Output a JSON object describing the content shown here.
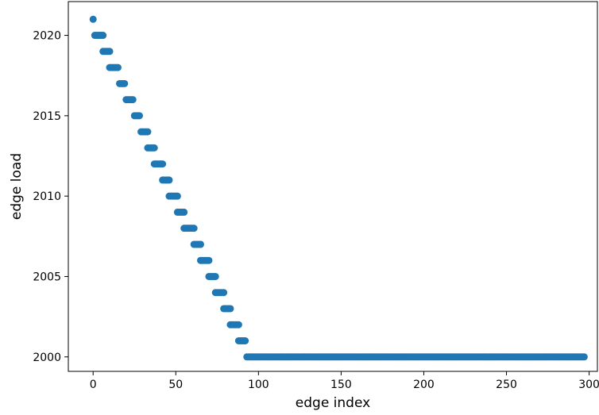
{
  "chart_data": {
    "type": "scatter",
    "title": "",
    "xlabel": "edge index",
    "ylabel": "edge load",
    "xlim": [
      -15,
      305
    ],
    "ylim": [
      1999.1,
      2022.1
    ],
    "xticks": [
      0,
      50,
      100,
      150,
      200,
      250,
      300
    ],
    "yticks": [
      2000,
      2005,
      2010,
      2015,
      2020
    ],
    "grid": false,
    "legend": "none",
    "marker_color": "#1f77b4",
    "series": [
      {
        "points": [
          [
            0,
            2021
          ],
          [
            1,
            2020
          ],
          [
            2,
            2020
          ],
          [
            3,
            2020
          ],
          [
            4,
            2020
          ],
          [
            5,
            2020
          ],
          [
            6,
            2020
          ],
          [
            6,
            2019
          ],
          [
            7,
            2019
          ],
          [
            8,
            2019
          ],
          [
            9,
            2019
          ],
          [
            10,
            2019
          ],
          [
            10,
            2018
          ],
          [
            11,
            2018
          ],
          [
            12,
            2018
          ],
          [
            13,
            2018
          ],
          [
            14,
            2018
          ],
          [
            15,
            2018
          ],
          [
            16,
            2017
          ],
          [
            17,
            2017
          ],
          [
            18,
            2017
          ],
          [
            19,
            2017
          ],
          [
            20,
            2016
          ],
          [
            21,
            2016
          ],
          [
            22,
            2016
          ],
          [
            23,
            2016
          ],
          [
            24,
            2016
          ],
          [
            25,
            2015
          ],
          [
            26,
            2015
          ],
          [
            27,
            2015
          ],
          [
            28,
            2015
          ],
          [
            29,
            2014
          ],
          [
            30,
            2014
          ],
          [
            31,
            2014
          ],
          [
            32,
            2014
          ],
          [
            33,
            2014
          ],
          [
            33,
            2013
          ],
          [
            34,
            2013
          ],
          [
            35,
            2013
          ],
          [
            36,
            2013
          ],
          [
            37,
            2013
          ],
          [
            37,
            2012
          ],
          [
            38,
            2012
          ],
          [
            39,
            2012
          ],
          [
            40,
            2012
          ],
          [
            41,
            2012
          ],
          [
            42,
            2012
          ],
          [
            42,
            2011
          ],
          [
            43,
            2011
          ],
          [
            44,
            2011
          ],
          [
            45,
            2011
          ],
          [
            46,
            2011
          ],
          [
            46,
            2010
          ],
          [
            47,
            2010
          ],
          [
            48,
            2010
          ],
          [
            49,
            2010
          ],
          [
            50,
            2010
          ],
          [
            51,
            2010
          ],
          [
            51,
            2009
          ],
          [
            52,
            2009
          ],
          [
            53,
            2009
          ],
          [
            54,
            2009
          ],
          [
            55,
            2009
          ],
          [
            55,
            2008
          ],
          [
            56,
            2008
          ],
          [
            57,
            2008
          ],
          [
            58,
            2008
          ],
          [
            59,
            2008
          ],
          [
            60,
            2008
          ],
          [
            61,
            2008
          ],
          [
            61,
            2007
          ],
          [
            62,
            2007
          ],
          [
            63,
            2007
          ],
          [
            64,
            2007
          ],
          [
            65,
            2007
          ],
          [
            65,
            2006
          ],
          [
            66,
            2006
          ],
          [
            67,
            2006
          ],
          [
            68,
            2006
          ],
          [
            69,
            2006
          ],
          [
            70,
            2006
          ],
          [
            70,
            2005
          ],
          [
            71,
            2005
          ],
          [
            72,
            2005
          ],
          [
            73,
            2005
          ],
          [
            74,
            2005
          ],
          [
            74,
            2004
          ],
          [
            75,
            2004
          ],
          [
            76,
            2004
          ],
          [
            77,
            2004
          ],
          [
            78,
            2004
          ],
          [
            79,
            2004
          ],
          [
            79,
            2003
          ],
          [
            80,
            2003
          ],
          [
            81,
            2003
          ],
          [
            82,
            2003
          ],
          [
            83,
            2003
          ],
          [
            83,
            2002
          ],
          [
            84,
            2002
          ],
          [
            85,
            2002
          ],
          [
            86,
            2002
          ],
          [
            87,
            2002
          ],
          [
            88,
            2002
          ],
          [
            88,
            2001
          ],
          [
            89,
            2001
          ],
          [
            90,
            2001
          ],
          [
            91,
            2001
          ],
          [
            92,
            2001
          ]
        ],
        "constant_run": {
          "x_start": 93,
          "x_end": 297,
          "y": 2000
        }
      }
    ]
  }
}
